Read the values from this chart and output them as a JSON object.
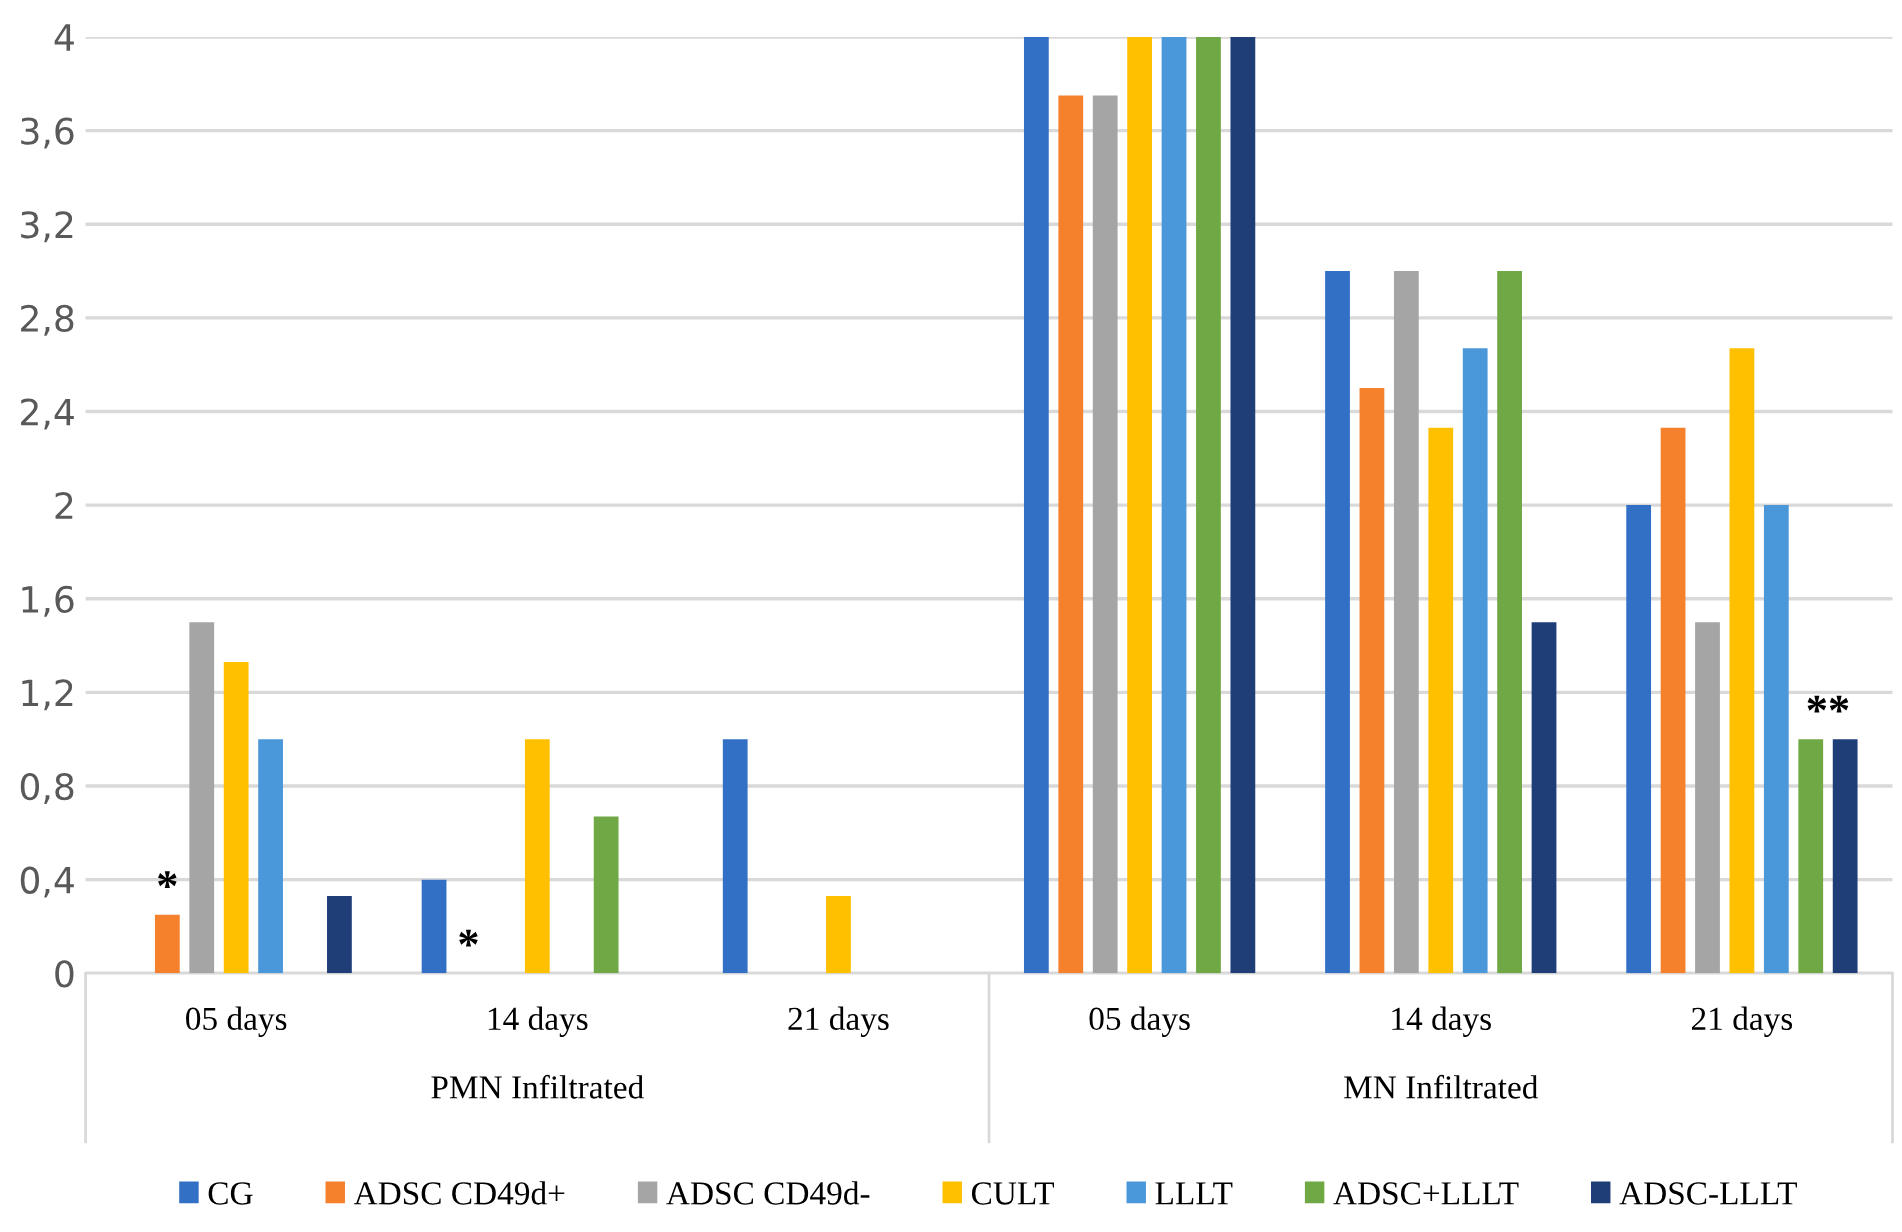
{
  "chart_data": {
    "type": "bar",
    "categories": [
      "05 days",
      "14 days",
      "21 days",
      "05 days",
      "14 days",
      "21 days"
    ],
    "series": [
      {
        "name": "CG",
        "color": "#3270c6",
        "values": [
          0,
          0.4,
          1.0,
          4.0,
          3.0,
          2.0
        ]
      },
      {
        "name": "ADSC CD49d+",
        "color": "#f5812c",
        "values": [
          0.25,
          0,
          0,
          3.75,
          2.5,
          2.33
        ]
      },
      {
        "name": "ADSC CD49d-",
        "color": "#a5a5a5",
        "values": [
          1.5,
          0,
          0,
          3.75,
          3.0,
          1.5
        ]
      },
      {
        "name": "CULT",
        "color": "#ffc000",
        "values": [
          1.33,
          1.0,
          0.33,
          4.0,
          2.33,
          2.67
        ]
      },
      {
        "name": "LLLT",
        "color": "#4a98da",
        "values": [
          1.0,
          0,
          0,
          4.0,
          2.67,
          2.0
        ]
      },
      {
        "name": "ADSC+LLLT",
        "color": "#6fa844",
        "values": [
          0,
          0.67,
          0,
          4.0,
          3.0,
          1.0
        ]
      },
      {
        "name": "ADSC-LLLT",
        "color": "#1f3e78",
        "values": [
          0.33,
          0,
          0,
          4.0,
          1.5,
          1.0
        ]
      }
    ],
    "ylim": [
      0,
      4
    ],
    "yticks": [
      0,
      {
        "value": 0.4,
        "label": "0,4"
      },
      {
        "value": 0.8,
        "label": "0,8"
      },
      {
        "value": 1.2,
        "label": "1,2"
      },
      {
        "value": 1.6,
        "label": "1,6"
      },
      2,
      {
        "value": 2.4,
        "label": "2,4"
      },
      {
        "value": 2.8,
        "label": "2,8"
      },
      {
        "value": 3.2,
        "label": "3,2"
      },
      {
        "value": 3.6,
        "label": "3,6"
      },
      4
    ],
    "grid": "y",
    "legend": "bottom",
    "annotations": [
      "PMN Infiltrated",
      "MN Infiltrated",
      "*",
      "*",
      "**"
    ]
  }
}
